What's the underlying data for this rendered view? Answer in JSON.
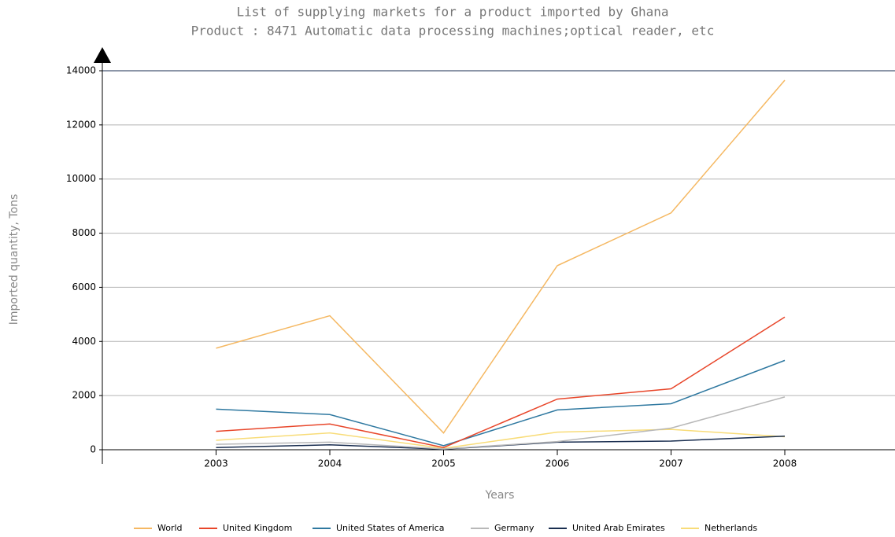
{
  "chart_data": {
    "type": "line",
    "title": "List of supplying markets for a product imported by Ghana",
    "subtitle": "Product : 8471 Automatic data processing machines;optical reader, etc",
    "x_label": "Years",
    "y_label": "Imported quantity, Tons",
    "x": [
      2003,
      2004,
      2005,
      2006,
      2007,
      2008
    ],
    "xlim": [
      2002,
      2009
    ],
    "xticks": [
      2003,
      2004,
      2005,
      2006,
      2007,
      2008
    ],
    "ylim": [
      0,
      14000
    ],
    "yticks": [
      0,
      2000,
      4000,
      6000,
      8000,
      10000,
      12000,
      14000
    ],
    "grid": true,
    "legend": "bottom",
    "series": [
      {
        "name": "World",
        "color": "#f5b862",
        "values": [
          3750,
          4950,
          620,
          6800,
          8750,
          13650
        ]
      },
      {
        "name": "United Kingdom",
        "color": "#e8462a",
        "values": [
          680,
          950,
          80,
          1870,
          2250,
          4900
        ]
      },
      {
        "name": "United States of America",
        "color": "#2e78a0",
        "values": [
          1500,
          1300,
          150,
          1470,
          1700,
          3300
        ]
      },
      {
        "name": "Germany",
        "color": "#b8b8b8",
        "values": [
          200,
          280,
          30,
          300,
          800,
          1950
        ]
      },
      {
        "name": "United Arab Emirates",
        "color": "#1a2e50",
        "values": [
          80,
          180,
          20,
          280,
          320,
          500
        ]
      },
      {
        "name": "Netherlands",
        "color": "#f8dc78",
        "values": [
          350,
          620,
          50,
          650,
          750,
          480
        ]
      }
    ]
  }
}
